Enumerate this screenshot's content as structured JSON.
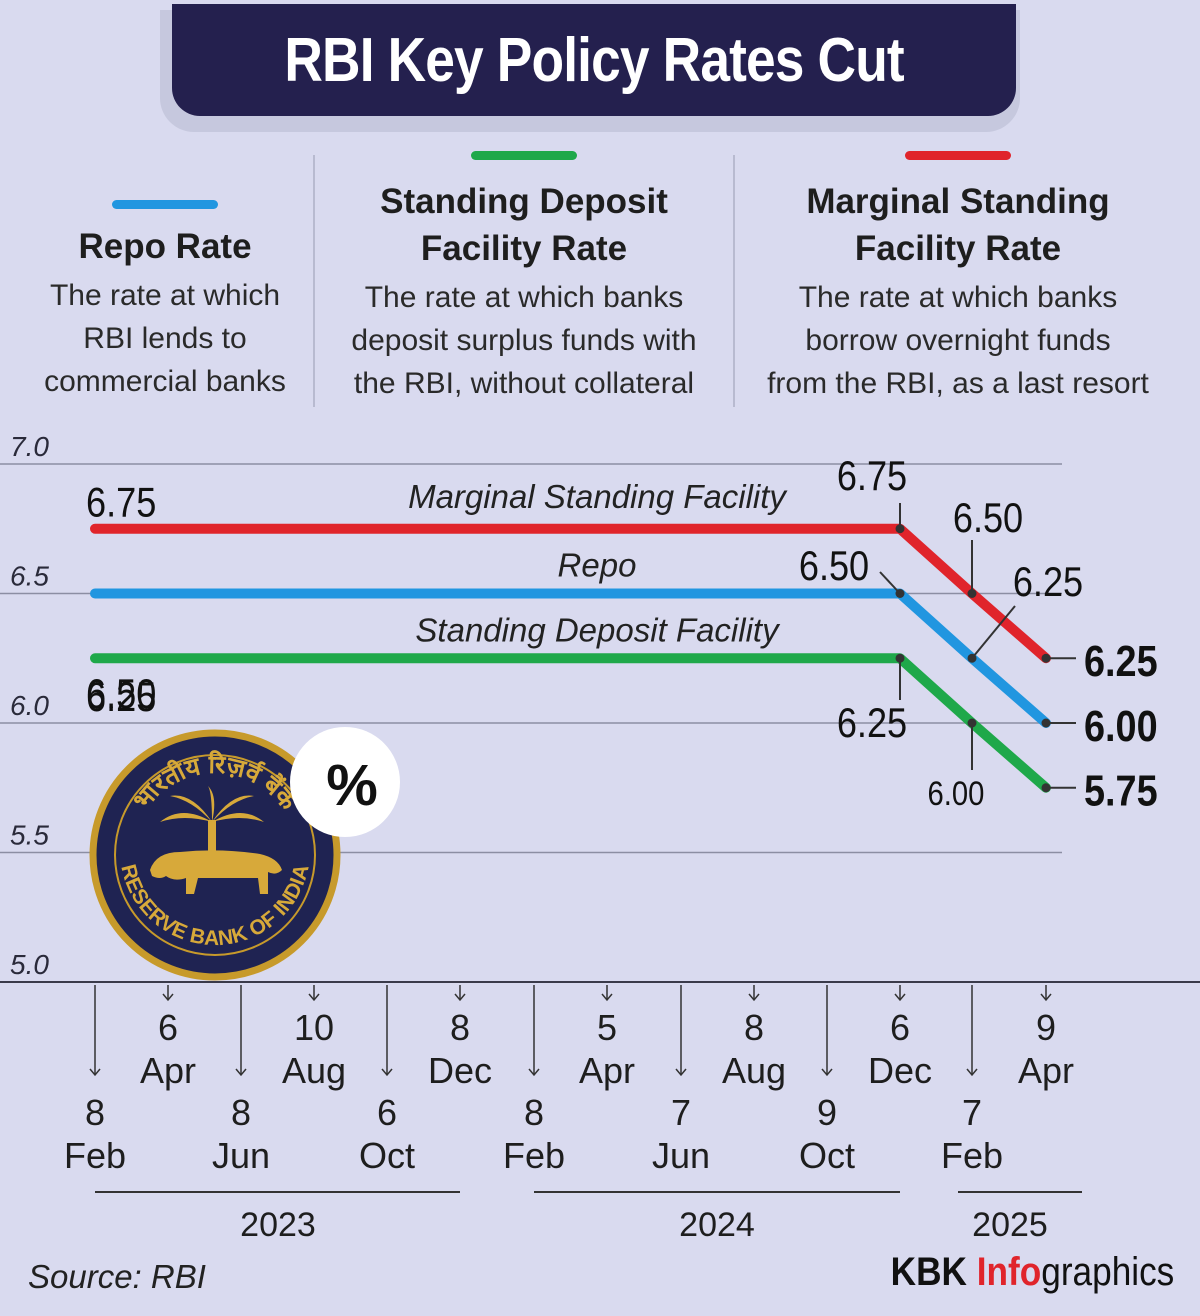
{
  "title": "RBI Key Policy Rates Cut",
  "legend": [
    {
      "key": "repo",
      "color": "#2196e0",
      "heading_lines": [
        "Repo Rate"
      ],
      "desc_lines": [
        "The rate at which",
        "RBI lends to",
        "commercial banks"
      ]
    },
    {
      "key": "sdf",
      "color": "#1fa84a",
      "heading_lines": [
        "Standing Deposit",
        "Facility Rate"
      ],
      "desc_lines": [
        "The rate at which banks",
        "deposit surplus funds with",
        "the RBI, without collateral"
      ]
    },
    {
      "key": "msf",
      "color": "#e0242b",
      "heading_lines": [
        "Marginal Standing",
        "Facility Rate"
      ],
      "desc_lines": [
        "The rate at which banks",
        "borrow overnight funds",
        "from the RBI, as a last resort"
      ]
    }
  ],
  "chart_data": {
    "type": "line",
    "title": "RBI Key Policy Rates Cut",
    "ylim": [
      5.0,
      7.0
    ],
    "yticks": [
      "7.0",
      "6.5",
      "6.0",
      "5.5",
      "5.0"
    ],
    "ytick_values": [
      7.0,
      6.5,
      6.0,
      5.5,
      5.0
    ],
    "grid": true,
    "dates": [
      {
        "day": "8",
        "month": "Feb",
        "year": "2023"
      },
      {
        "day": "6",
        "month": "Apr",
        "year": "2023"
      },
      {
        "day": "8",
        "month": "Jun",
        "year": "2023"
      },
      {
        "day": "10",
        "month": "Aug",
        "year": "2023"
      },
      {
        "day": "6",
        "month": "Oct",
        "year": "2023"
      },
      {
        "day": "8",
        "month": "Dec",
        "year": "2023"
      },
      {
        "day": "8",
        "month": "Feb",
        "year": "2024"
      },
      {
        "day": "5",
        "month": "Apr",
        "year": "2024"
      },
      {
        "day": "7",
        "month": "Jun",
        "year": "2024"
      },
      {
        "day": "8",
        "month": "Aug",
        "year": "2024"
      },
      {
        "day": "9",
        "month": "Oct",
        "year": "2024"
      },
      {
        "day": "6",
        "month": "Dec",
        "year": "2024"
      },
      {
        "day": "7",
        "month": "Feb",
        "year": "2025"
      },
      {
        "day": "9",
        "month": "Apr",
        "year": "2025"
      }
    ],
    "years": [
      "2023",
      "2024",
      "2025"
    ],
    "series": [
      {
        "name": "Marginal Standing Facility",
        "color": "#e0242b",
        "values": [
          6.75,
          6.75,
          6.75,
          6.75,
          6.75,
          6.75,
          6.75,
          6.75,
          6.75,
          6.75,
          6.75,
          6.75,
          6.5,
          6.25
        ]
      },
      {
        "name": "Repo",
        "color": "#2196e0",
        "values": [
          6.5,
          6.5,
          6.5,
          6.5,
          6.5,
          6.5,
          6.5,
          6.5,
          6.5,
          6.5,
          6.5,
          6.5,
          6.25,
          6.0
        ]
      },
      {
        "name": "Standing Deposit Facility",
        "color": "#1fa84a",
        "values": [
          6.25,
          6.25,
          6.25,
          6.25,
          6.25,
          6.25,
          6.25,
          6.25,
          6.25,
          6.25,
          6.25,
          6.25,
          6.0,
          5.75
        ]
      }
    ],
    "annotations": {
      "start_msf": "6.75",
      "start_repo": "6.50",
      "start_sdf": "6.25",
      "dec_msf": "6.75",
      "dec_repo": "6.50",
      "dec_sdf": "6.25",
      "feb_msf": "6.50",
      "feb_repo": "6.25",
      "feb_sdf": "6.00",
      "end_msf": "6.25",
      "end_repo": "6.00",
      "end_sdf": "5.75"
    }
  },
  "emblem": {
    "text_hindi": "भारतीय रिज़र्व बैंक",
    "text_english": "RESERVE BANK OF INDIA",
    "badge": "%"
  },
  "footer": {
    "source": "Source: RBI",
    "brand_kbk": "KBK ",
    "brand_info": "Info",
    "brand_rest": "graphics"
  }
}
